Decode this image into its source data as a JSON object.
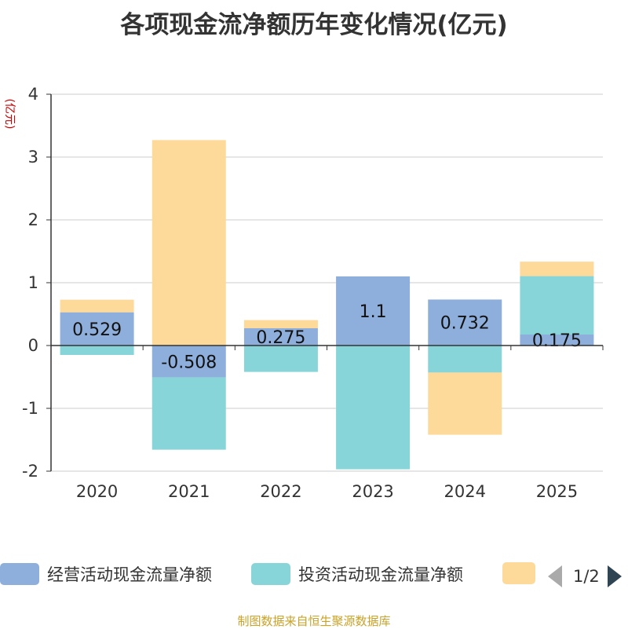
{
  "title": "各项现金流净额历年变化情况(亿元)",
  "source": "制图数据来自恒生聚源数据库",
  "legend_pager": "1/2",
  "chart_data": {
    "type": "bar",
    "stacked": true,
    "unit_label": "(亿元)",
    "categories": [
      "2020",
      "2021",
      "2022",
      "2023",
      "2024",
      "2025"
    ],
    "ylim": [
      -2,
      4
    ],
    "yticks": [
      -2,
      -1,
      0,
      1,
      2,
      3,
      4
    ],
    "series": [
      {
        "name": "经营活动现金流量净额",
        "color": "#8eaedb",
        "values": [
          0.529,
          -0.508,
          0.275,
          1.1,
          0.732,
          0.175
        ],
        "labels": [
          "0.529",
          "-0.508",
          "0.275",
          "1.1",
          "0.732",
          "0.175"
        ]
      },
      {
        "name": "投资活动现金流量净额",
        "color": "#87d5d8",
        "values": [
          -0.15,
          -1.15,
          -0.42,
          -1.97,
          -0.43,
          0.93
        ]
      },
      {
        "name": "",
        "color": "#fdd99a",
        "values": [
          0.2,
          3.27,
          0.13,
          0,
          -0.99,
          0.23
        ]
      }
    ]
  }
}
